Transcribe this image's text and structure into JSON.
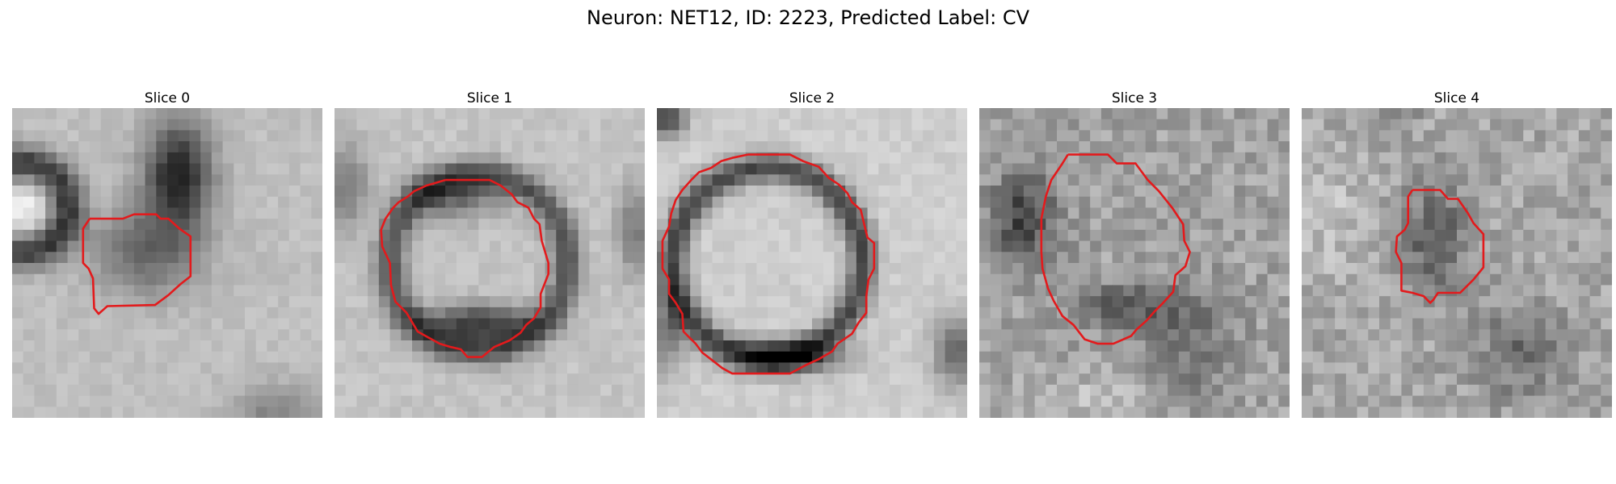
{
  "figure": {
    "title": "Neuron: NET12, ID: 2223, Predicted Label: CV",
    "contour_color": "#e31a1c",
    "panels": [
      {
        "label": "Slice 0",
        "seed": 11,
        "scene": "s0",
        "contour": [
          [
            7,
            10
          ],
          [
            10,
            10
          ],
          [
            11,
            9.6
          ],
          [
            13,
            9.6
          ],
          [
            13.4,
            10
          ],
          [
            14.1,
            10
          ],
          [
            15.1,
            10.9
          ],
          [
            16.1,
            11.6
          ],
          [
            16.1,
            15.2
          ],
          [
            15.2,
            15.9
          ],
          [
            14.1,
            16.9
          ],
          [
            12.9,
            17.8
          ],
          [
            8.6,
            17.9
          ],
          [
            7.8,
            18.6
          ],
          [
            7.4,
            18.1
          ],
          [
            7.3,
            15.4
          ],
          [
            6.9,
            14.5
          ],
          [
            6.4,
            14.0
          ],
          [
            6.4,
            10.9
          ],
          [
            7,
            10
          ]
        ]
      },
      {
        "label": "Slice 1",
        "seed": 23,
        "scene": "s1",
        "contour": [
          [
            10,
            6.5
          ],
          [
            14,
            6.5
          ],
          [
            15,
            7
          ],
          [
            16,
            7.8
          ],
          [
            16.5,
            8.5
          ],
          [
            17.5,
            9
          ],
          [
            18,
            10
          ],
          [
            18.5,
            10.5
          ],
          [
            18.7,
            12
          ],
          [
            19,
            13
          ],
          [
            19.3,
            14
          ],
          [
            19.3,
            15
          ],
          [
            18.6,
            16.8
          ],
          [
            18.6,
            18
          ],
          [
            18,
            19
          ],
          [
            17.3,
            19.6
          ],
          [
            16.8,
            20.3
          ],
          [
            15.8,
            21
          ],
          [
            14.4,
            21.6
          ],
          [
            13.3,
            22.5
          ],
          [
            12,
            22.5
          ],
          [
            11.4,
            21.8
          ],
          [
            10.5,
            21.6
          ],
          [
            9.5,
            21.3
          ],
          [
            8.4,
            20.7
          ],
          [
            7.5,
            20.2
          ],
          [
            6.5,
            18.5
          ],
          [
            5.5,
            17.5
          ],
          [
            5.1,
            16
          ],
          [
            5,
            14
          ],
          [
            4.3,
            12.5
          ],
          [
            4.2,
            11
          ],
          [
            4.6,
            10
          ],
          [
            5.3,
            9
          ],
          [
            5.8,
            8.5
          ],
          [
            6.6,
            8
          ],
          [
            7.2,
            7.5
          ],
          [
            8.3,
            7
          ],
          [
            9,
            6.8
          ],
          [
            10,
            6.5
          ]
        ]
      },
      {
        "label": "Slice 2",
        "seed": 37,
        "scene": "s2",
        "contour": [
          [
            8.2,
            4.2
          ],
          [
            12,
            4.2
          ],
          [
            13.2,
            4.8
          ],
          [
            14.6,
            5.3
          ],
          [
            15.5,
            6.3
          ],
          [
            16.4,
            6.9
          ],
          [
            17.2,
            7.7
          ],
          [
            17.6,
            8.5
          ],
          [
            18.4,
            9.2
          ],
          [
            18.7,
            10.5
          ],
          [
            19,
            11.7
          ],
          [
            19.6,
            12.2
          ],
          [
            19.6,
            14.5
          ],
          [
            19.1,
            15.5
          ],
          [
            18.9,
            17
          ],
          [
            18.9,
            18.5
          ],
          [
            18.2,
            19.4
          ],
          [
            17.6,
            20.4
          ],
          [
            16.3,
            21.3
          ],
          [
            15.8,
            22
          ],
          [
            14.6,
            22.7
          ],
          [
            13.5,
            23.2
          ],
          [
            12,
            24
          ],
          [
            6.8,
            24
          ],
          [
            5.9,
            23.5
          ],
          [
            5,
            22.8
          ],
          [
            4.1,
            22.1
          ],
          [
            3.5,
            21.3
          ],
          [
            3,
            20.8
          ],
          [
            2.4,
            20.2
          ],
          [
            2.3,
            18.6
          ],
          [
            1.7,
            17.6
          ],
          [
            1.1,
            16.8
          ],
          [
            1.1,
            15.5
          ],
          [
            0.5,
            14.5
          ],
          [
            0.5,
            12
          ],
          [
            1.1,
            10.7
          ],
          [
            1.3,
            9.5
          ],
          [
            1.7,
            8.3
          ],
          [
            2.3,
            7.4
          ],
          [
            3.1,
            6.5
          ],
          [
            3.8,
            5.8
          ],
          [
            4.9,
            5.4
          ],
          [
            5.8,
            4.8
          ],
          [
            6.8,
            4.5
          ],
          [
            8.2,
            4.2
          ]
        ]
      },
      {
        "label": "Slice 3",
        "seed": 53,
        "scene": "s3",
        "contour": [
          [
            8,
            4.2
          ],
          [
            11.6,
            4.2
          ],
          [
            12.4,
            5
          ],
          [
            14.1,
            5
          ],
          [
            15.2,
            6.5
          ],
          [
            16.2,
            7.5
          ],
          [
            17.4,
            9
          ],
          [
            18.4,
            10.5
          ],
          [
            18.5,
            12
          ],
          [
            19,
            13
          ],
          [
            18.6,
            14.3
          ],
          [
            17.7,
            15.1
          ],
          [
            17.5,
            16.6
          ],
          [
            16.5,
            17.7
          ],
          [
            15.8,
            18.4
          ],
          [
            15.1,
            19.2
          ],
          [
            14.2,
            20
          ],
          [
            13.7,
            20.6
          ],
          [
            12.1,
            21.3
          ],
          [
            10.7,
            21.3
          ],
          [
            9.5,
            20.9
          ],
          [
            8.5,
            19.6
          ],
          [
            7.5,
            18.8
          ],
          [
            6.7,
            17.4
          ],
          [
            6.2,
            16.3
          ],
          [
            5.7,
            14.5
          ],
          [
            5.6,
            13
          ],
          [
            5.6,
            10
          ],
          [
            6,
            8
          ],
          [
            6.5,
            6.5
          ],
          [
            7.5,
            5
          ],
          [
            8,
            4.2
          ]
        ]
      },
      {
        "label": "Slice 4",
        "seed": 71,
        "scene": "s4",
        "contour": [
          [
            10,
            7.4
          ],
          [
            12.5,
            7.4
          ],
          [
            13.2,
            8.2
          ],
          [
            14.1,
            8.2
          ],
          [
            15,
            9.5
          ],
          [
            15.5,
            10.4
          ],
          [
            16.4,
            11.4
          ],
          [
            16.4,
            14.4
          ],
          [
            15.5,
            15.5
          ],
          [
            14.3,
            16.7
          ],
          [
            12.3,
            16.7
          ],
          [
            11.9,
            17.3
          ],
          [
            11.6,
            17.6
          ],
          [
            11,
            17
          ],
          [
            10,
            16.7
          ],
          [
            9,
            16.5
          ],
          [
            9,
            14
          ],
          [
            8.5,
            13
          ],
          [
            8.6,
            11.6
          ],
          [
            9.3,
            11
          ],
          [
            9.6,
            10.4
          ],
          [
            9.6,
            8
          ],
          [
            10,
            7.4
          ]
        ]
      }
    ]
  }
}
